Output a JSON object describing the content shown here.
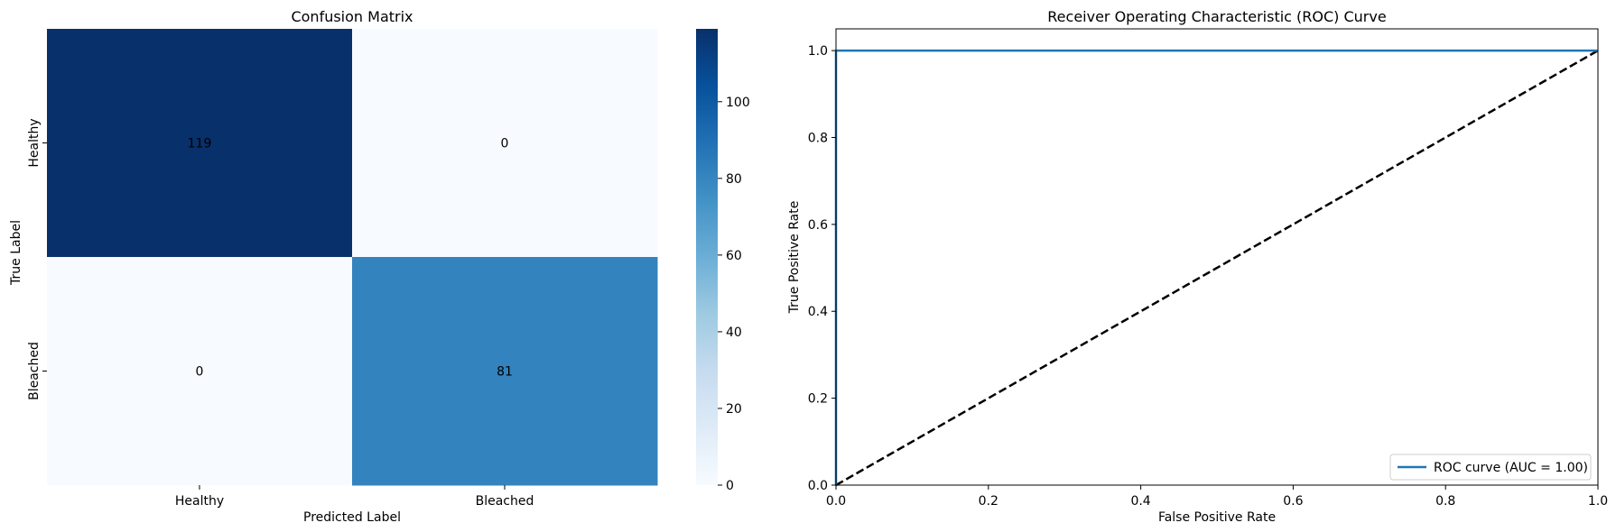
{
  "chart_data": [
    {
      "type": "heatmap",
      "title": "Confusion Matrix",
      "xlabel": "Predicted Label",
      "ylabel": "True Label",
      "x_categories": [
        "Healthy",
        "Bleached"
      ],
      "y_categories": [
        "Healthy",
        "Bleached"
      ],
      "values": [
        [
          119,
          0
        ],
        [
          0,
          81
        ]
      ],
      "colormap": "Blues",
      "colorbar": {
        "range": [
          0,
          119
        ],
        "ticks": [
          0,
          20,
          40,
          60,
          80,
          100
        ]
      }
    },
    {
      "type": "line",
      "title": "Receiver Operating Characteristic (ROC) Curve",
      "xlabel": "False Positive Rate",
      "ylabel": "True Positive Rate",
      "xlim": [
        0.0,
        1.0
      ],
      "ylim": [
        0.0,
        1.05
      ],
      "xticks": [
        "0.0",
        "0.2",
        "0.4",
        "0.6",
        "0.8",
        "1.0"
      ],
      "yticks": [
        "0.0",
        "0.2",
        "0.4",
        "0.6",
        "0.8",
        "1.0"
      ],
      "grid": false,
      "legend_position": "lower-right",
      "series": [
        {
          "name": "ROC curve (AUC = 1.00)",
          "x": [
            0.0,
            0.0,
            1.0
          ],
          "y": [
            0.0,
            1.0,
            1.0
          ],
          "color": "#1f77b4",
          "style": "solid"
        },
        {
          "x": [
            0.0,
            1.0
          ],
          "y": [
            0.0,
            1.0
          ],
          "color": "#000000",
          "style": "dashed"
        }
      ]
    }
  ]
}
